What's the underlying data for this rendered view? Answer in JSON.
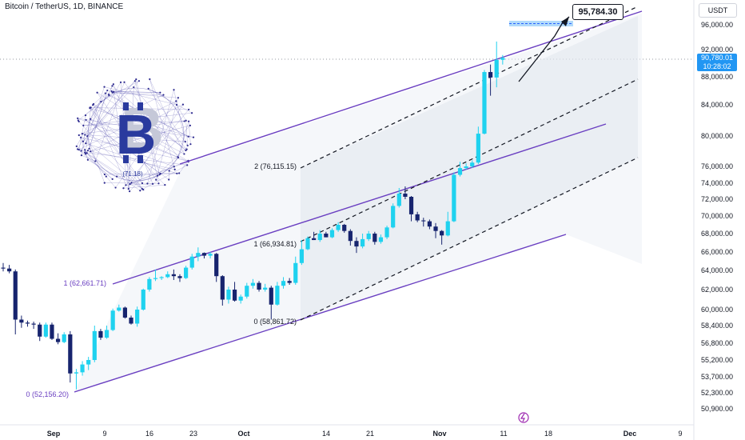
{
  "header": {
    "title": "Bitcoin / TetherUS, 1D, BINANCE"
  },
  "currency": "USDT",
  "price_tag": {
    "price": "90,780.01",
    "countdown": "10:28:02"
  },
  "callout": "95,784.30",
  "fib_labels": {
    "outer": [
      "0 (52,156.20)",
      "1 (62,661.71)"
    ],
    "inner": [
      "0 (58,861.72)",
      "1 (66,934.81)",
      "2 (76,115.15)"
    ]
  },
  "logo_text": "(71.18)",
  "chart_data": {
    "type": "candlestick",
    "title": "Bitcoin / TetherUS, 1D, BINANCE",
    "y_ticks": [
      50900,
      52300,
      53700,
      55200,
      56800,
      58400,
      60000,
      62000,
      64000,
      66000,
      68000,
      70000,
      72000,
      74000,
      76000,
      80000,
      84000,
      88000,
      92000,
      96000
    ],
    "x_ticks": [
      "Sep",
      "9",
      "16",
      "23",
      "Oct",
      "14",
      "21",
      "Nov",
      "11",
      "18",
      "Dec",
      "9"
    ],
    "current_price": 90780.01,
    "target_price": 95784.3,
    "candles": [
      [
        64300,
        64800,
        63900,
        64200
      ],
      [
        64200,
        64600,
        63700,
        63900
      ],
      [
        63900,
        64100,
        57600,
        59000
      ],
      [
        59000,
        59400,
        58200,
        58700
      ],
      [
        58700,
        58900,
        58300,
        58600
      ],
      [
        58600,
        58800,
        58100,
        58500
      ],
      [
        58500,
        58700,
        57000,
        57400
      ],
      [
        57400,
        58700,
        57300,
        58500
      ],
      [
        58500,
        58700,
        57100,
        57200
      ],
      [
        57200,
        57700,
        56700,
        56900
      ],
      [
        56900,
        57800,
        56800,
        57600
      ],
      [
        57600,
        57900,
        53200,
        54000
      ],
      [
        54000,
        54400,
        52600,
        54100
      ],
      [
        54100,
        55100,
        53800,
        54800
      ],
      [
        54800,
        55500,
        54300,
        55200
      ],
      [
        55200,
        58400,
        55000,
        57900
      ],
      [
        57900,
        58100,
        57100,
        57300
      ],
      [
        57300,
        58400,
        57200,
        58000
      ],
      [
        58000,
        60100,
        57900,
        59900
      ],
      [
        59900,
        60500,
        59800,
        60200
      ],
      [
        60200,
        60300,
        59100,
        59200
      ],
      [
        59200,
        59400,
        58500,
        58600
      ],
      [
        58600,
        60300,
        58300,
        60000
      ],
      [
        60000,
        62100,
        59900,
        62000
      ],
      [
        62000,
        63300,
        61800,
        63100
      ],
      [
        63100,
        64100,
        62900,
        63200
      ],
      [
        63200,
        63400,
        63000,
        63300
      ],
      [
        63300,
        63900,
        63200,
        63600
      ],
      [
        63600,
        64100,
        63000,
        63400
      ],
      [
        63400,
        63600,
        62800,
        63200
      ],
      [
        63200,
        64500,
        63100,
        64300
      ],
      [
        64300,
        65800,
        64100,
        65500
      ],
      [
        65500,
        66500,
        65000,
        65900
      ],
      [
        65900,
        65950,
        65300,
        65600
      ],
      [
        65600,
        66000,
        65300,
        65800
      ],
      [
        65800,
        65900,
        62800,
        63400
      ],
      [
        63400,
        63500,
        60400,
        61000
      ],
      [
        61000,
        62300,
        60600,
        62000
      ],
      [
        62000,
        62800,
        60800,
        60900
      ],
      [
        60900,
        61500,
        60600,
        61300
      ],
      [
        61300,
        62700,
        61100,
        62400
      ],
      [
        62400,
        63100,
        62100,
        62700
      ],
      [
        62700,
        62900,
        61800,
        62000
      ],
      [
        62000,
        62600,
        61800,
        62200
      ],
      [
        62200,
        62400,
        59000,
        60500
      ],
      [
        60500,
        62800,
        60400,
        62400
      ],
      [
        62400,
        63300,
        62100,
        62900
      ],
      [
        62900,
        63200,
        62500,
        62700
      ],
      [
        62700,
        65500,
        62500,
        64800
      ],
      [
        64800,
        67300,
        64600,
        66300
      ],
      [
        66300,
        67700,
        66200,
        67500
      ],
      [
        67500,
        68200,
        67300,
        67300
      ],
      [
        67300,
        68400,
        67100,
        68000
      ],
      [
        68000,
        68200,
        67600,
        67600
      ],
      [
        67600,
        68600,
        67500,
        68400
      ],
      [
        68400,
        69300,
        68200,
        69000
      ],
      [
        69000,
        69100,
        68100,
        68300
      ],
      [
        68300,
        68500,
        66700,
        67200
      ],
      [
        67200,
        67600,
        65900,
        66600
      ],
      [
        66600,
        68000,
        66400,
        67400
      ],
      [
        67400,
        68300,
        67200,
        68000
      ],
      [
        68000,
        68200,
        66800,
        67100
      ],
      [
        67100,
        67900,
        66900,
        67600
      ],
      [
        67600,
        68900,
        67400,
        68700
      ],
      [
        68700,
        71500,
        68600,
        71200
      ],
      [
        71200,
        73400,
        71000,
        72700
      ],
      [
        72700,
        73600,
        72000,
        72300
      ],
      [
        72300,
        72400,
        69400,
        70200
      ],
      [
        70200,
        70500,
        69300,
        69500
      ],
      [
        69500,
        69800,
        68800,
        69400
      ],
      [
        69400,
        69600,
        68500,
        68800
      ],
      [
        68800,
        69200,
        67500,
        68300
      ],
      [
        68300,
        68400,
        66800,
        67800
      ],
      [
        67800,
        70500,
        67700,
        69400
      ],
      [
        69400,
        75300,
        69300,
        75000
      ],
      [
        75000,
        76600,
        74800,
        75800
      ],
      [
        75800,
        76400,
        75600,
        76000
      ],
      [
        76000,
        76800,
        75800,
        76500
      ],
      [
        76500,
        81200,
        76300,
        80300
      ],
      [
        80300,
        89000,
        80200,
        88700
      ],
      [
        88700,
        89800,
        85300,
        87900
      ],
      [
        87900,
        93300,
        86500,
        90500
      ],
      [
        90500,
        91200,
        89800,
        90780
      ]
    ]
  }
}
